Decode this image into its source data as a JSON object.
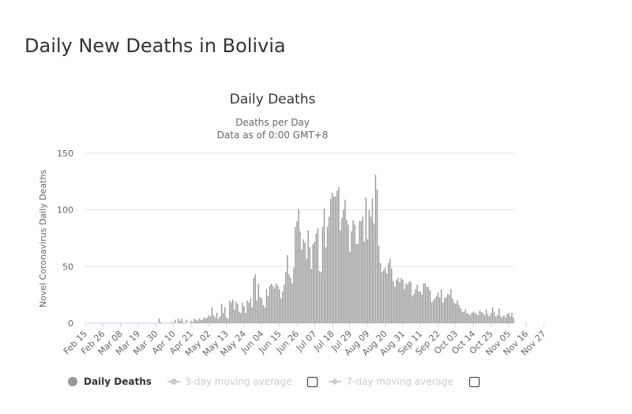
{
  "page": {
    "title": "Daily New Deaths in Bolivia"
  },
  "legend": {
    "items": [
      {
        "label": "Daily Deaths",
        "active": true,
        "color": "#999999"
      },
      {
        "label": "3-day moving average",
        "active": false,
        "color": "#cccccc"
      },
      {
        "label": "7-day moving average",
        "active": false,
        "color": "#cccccc"
      }
    ]
  },
  "chart_data": {
    "type": "bar",
    "title": "Daily Deaths",
    "subtitle_lines": [
      "Deaths per Day",
      "Data as of 0:00 GMT+8"
    ],
    "ylabel": "Novel Coronavirus Daily Deaths",
    "xlabel": "",
    "ylim": [
      0,
      150
    ],
    "yticks": [
      0,
      50,
      100,
      150
    ],
    "grid": true,
    "legend_position": "bottom-left",
    "bar_color": "#999999",
    "x_tick_labels": [
      "Feb 15",
      "Feb 26",
      "Mar 08",
      "Mar 19",
      "Mar 30",
      "Apr 10",
      "Apr 21",
      "May 02",
      "May 13",
      "May 24",
      "Jun 04",
      "Jun 15",
      "Jun 26",
      "Jul 07",
      "Jul 18",
      "Jul 29",
      "Aug 09",
      "Aug 20",
      "Aug 31",
      "Sep 11",
      "Sep 22",
      "Oct 03",
      "Oct 14",
      "Oct 25",
      "Nov 05",
      "Nov 16",
      "Nov 27"
    ],
    "series": [
      {
        "name": "Daily Deaths",
        "start_date": "Feb 15",
        "values": [
          0,
          0,
          0,
          0,
          0,
          0,
          0,
          0,
          0,
          0,
          0,
          0,
          0,
          0,
          0,
          0,
          0,
          0,
          0,
          0,
          0,
          0,
          0,
          0,
          0,
          0,
          0,
          0,
          0,
          0,
          0,
          0,
          0,
          0,
          0,
          0,
          0,
          0,
          0,
          0,
          0,
          0,
          0,
          0,
          0,
          0,
          4,
          1,
          0,
          0,
          0,
          0,
          0,
          0,
          1,
          0,
          3,
          0,
          4,
          2,
          4,
          1,
          0,
          3,
          0,
          0,
          2,
          1,
          4,
          3,
          2,
          4,
          3,
          3,
          5,
          4,
          5,
          7,
          6,
          14,
          7,
          5,
          9,
          4,
          6,
          17,
          9,
          14,
          5,
          4,
          20,
          18,
          21,
          12,
          19,
          17,
          10,
          9,
          18,
          15,
          9,
          20,
          18,
          22,
          14,
          40,
          43,
          20,
          35,
          23,
          22,
          16,
          14,
          30,
          24,
          33,
          35,
          33,
          31,
          35,
          33,
          30,
          22,
          28,
          34,
          45,
          60,
          43,
          40,
          35,
          49,
          85,
          90,
          101,
          81,
          65,
          74,
          71,
          57,
          82,
          67,
          48,
          70,
          72,
          79,
          84,
          46,
          45,
          85,
          101,
          67,
          85,
          94,
          110,
          115,
          112,
          112,
          117,
          120,
          82,
          93,
          100,
          109,
          91,
          87,
          63,
          81,
          91,
          87,
          70,
          70,
          90,
          90,
          94,
          72,
          111,
          74,
          100,
          94,
          110,
          88,
          131,
          118,
          68,
          53,
          45,
          47,
          49,
          44,
          53,
          57,
          48,
          37,
          32,
          38,
          40,
          36,
          40,
          38,
          30,
          35,
          34,
          37,
          36,
          24,
          26,
          30,
          34,
          28,
          28,
          25,
          35,
          35,
          32,
          32,
          29,
          18,
          20,
          22,
          24,
          27,
          23,
          30,
          18,
          22,
          23,
          26,
          25,
          30,
          22,
          18,
          17,
          20,
          16,
          13,
          10,
          10,
          12,
          9,
          8,
          7,
          9,
          10,
          9,
          8,
          7,
          11,
          10,
          9,
          7,
          12,
          8,
          6,
          9,
          14,
          10,
          6,
          7,
          13,
          6,
          5,
          7,
          5,
          8,
          9,
          6,
          9,
          5
        ]
      }
    ]
  }
}
